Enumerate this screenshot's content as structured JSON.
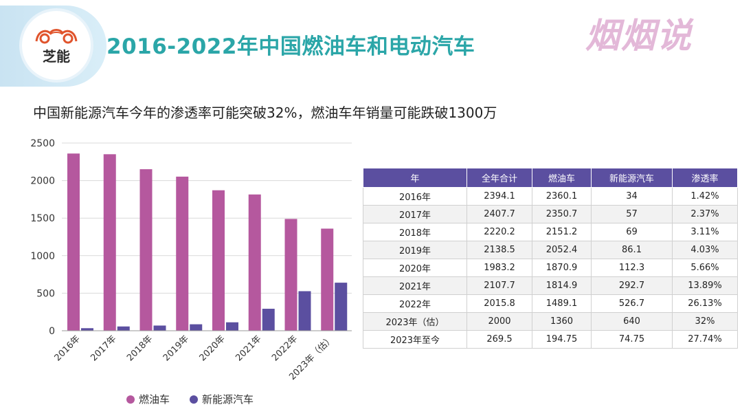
{
  "header": {
    "title": "2016-2022年中国燃油车和电动汽车",
    "logo_text": "芝能",
    "watermark": "烟烟说"
  },
  "subtitle": "中国新能源汽车今年的渗透率可能突破32%，燃油车年销量可能跌破1300万",
  "colors": {
    "fuel": "#b5589e",
    "ev": "#5b4fa0",
    "title": "#2ba6a8",
    "table_header": "#5b4fa0"
  },
  "chart_data": {
    "type": "bar",
    "categories": [
      "2016年",
      "2017年",
      "2018年",
      "2019年",
      "2020年",
      "2021年",
      "2022年",
      "2023年（估）"
    ],
    "series": [
      {
        "name": "燃油车",
        "values": [
          2360.1,
          2350.7,
          2151.2,
          2052.4,
          1870.9,
          1814.9,
          1489.1,
          1360
        ]
      },
      {
        "name": "新能源汽车",
        "values": [
          34,
          57,
          69,
          86.1,
          112.3,
          292.7,
          526.7,
          640
        ]
      }
    ],
    "yticks": [
      0,
      500,
      1000,
      1500,
      2000,
      2500
    ],
    "ylim": [
      0,
      2500
    ],
    "grid": true,
    "legend": "bottom"
  },
  "table": {
    "headers": [
      "年",
      "全年合计",
      "燃油车",
      "新能源汽车",
      "渗透率"
    ],
    "rows": [
      [
        "2016年",
        "2394.1",
        "2360.1",
        "34",
        "1.42%"
      ],
      [
        "2017年",
        "2407.7",
        "2350.7",
        "57",
        "2.37%"
      ],
      [
        "2018年",
        "2220.2",
        "2151.2",
        "69",
        "3.11%"
      ],
      [
        "2019年",
        "2138.5",
        "2052.4",
        "86.1",
        "4.03%"
      ],
      [
        "2020年",
        "1983.2",
        "1870.9",
        "112.3",
        "5.66%"
      ],
      [
        "2021年",
        "2107.7",
        "1814.9",
        "292.7",
        "13.89%"
      ],
      [
        "2022年",
        "2015.8",
        "1489.1",
        "526.7",
        "26.13%"
      ],
      [
        "2023年（估）",
        "2000",
        "1360",
        "640",
        "32%"
      ],
      [
        "2023年至今",
        "269.5",
        "194.75",
        "74.75",
        "27.74%"
      ]
    ]
  }
}
